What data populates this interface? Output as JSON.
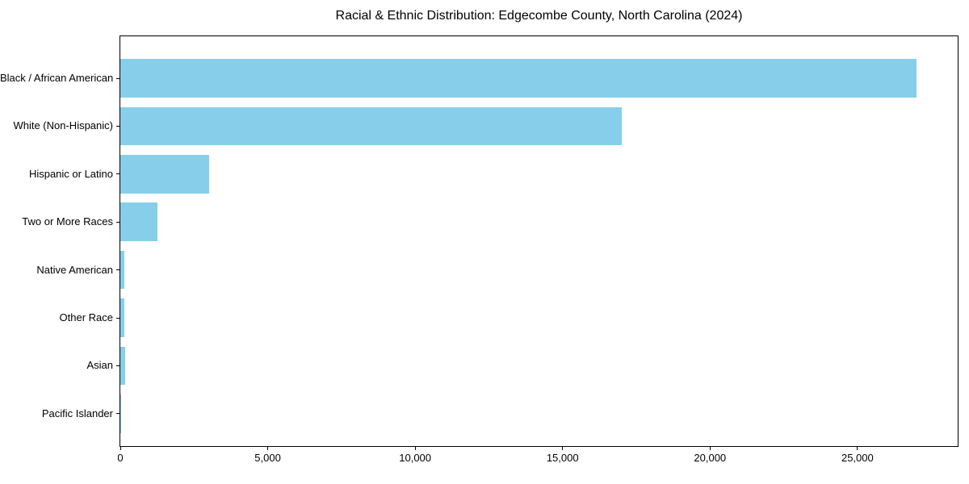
{
  "chart_data": {
    "type": "bar",
    "orientation": "horizontal",
    "title": "Racial & Ethnic Distribution: Edgecombe County, North Carolina (2024)",
    "categories": [
      "Black / African American",
      "White (Non-Hispanic)",
      "Hispanic or Latino",
      "Two or More Races",
      "Native American",
      "Other Race",
      "Asian",
      "Pacific Islander"
    ],
    "values": [
      27000,
      17000,
      3000,
      1250,
      130,
      130,
      160,
      20
    ],
    "xlabel": "",
    "ylabel": "",
    "xlim": [
      0,
      28400
    ],
    "xticks": [
      0,
      5000,
      10000,
      15000,
      20000,
      25000
    ],
    "xtick_labels": [
      "0",
      "5,000",
      "10,000",
      "15,000",
      "20,000",
      "25,000"
    ],
    "bar_color": "#87CEEB",
    "axis_color": "#000000",
    "background_color": "#ffffff",
    "grid": false,
    "legend": null
  }
}
